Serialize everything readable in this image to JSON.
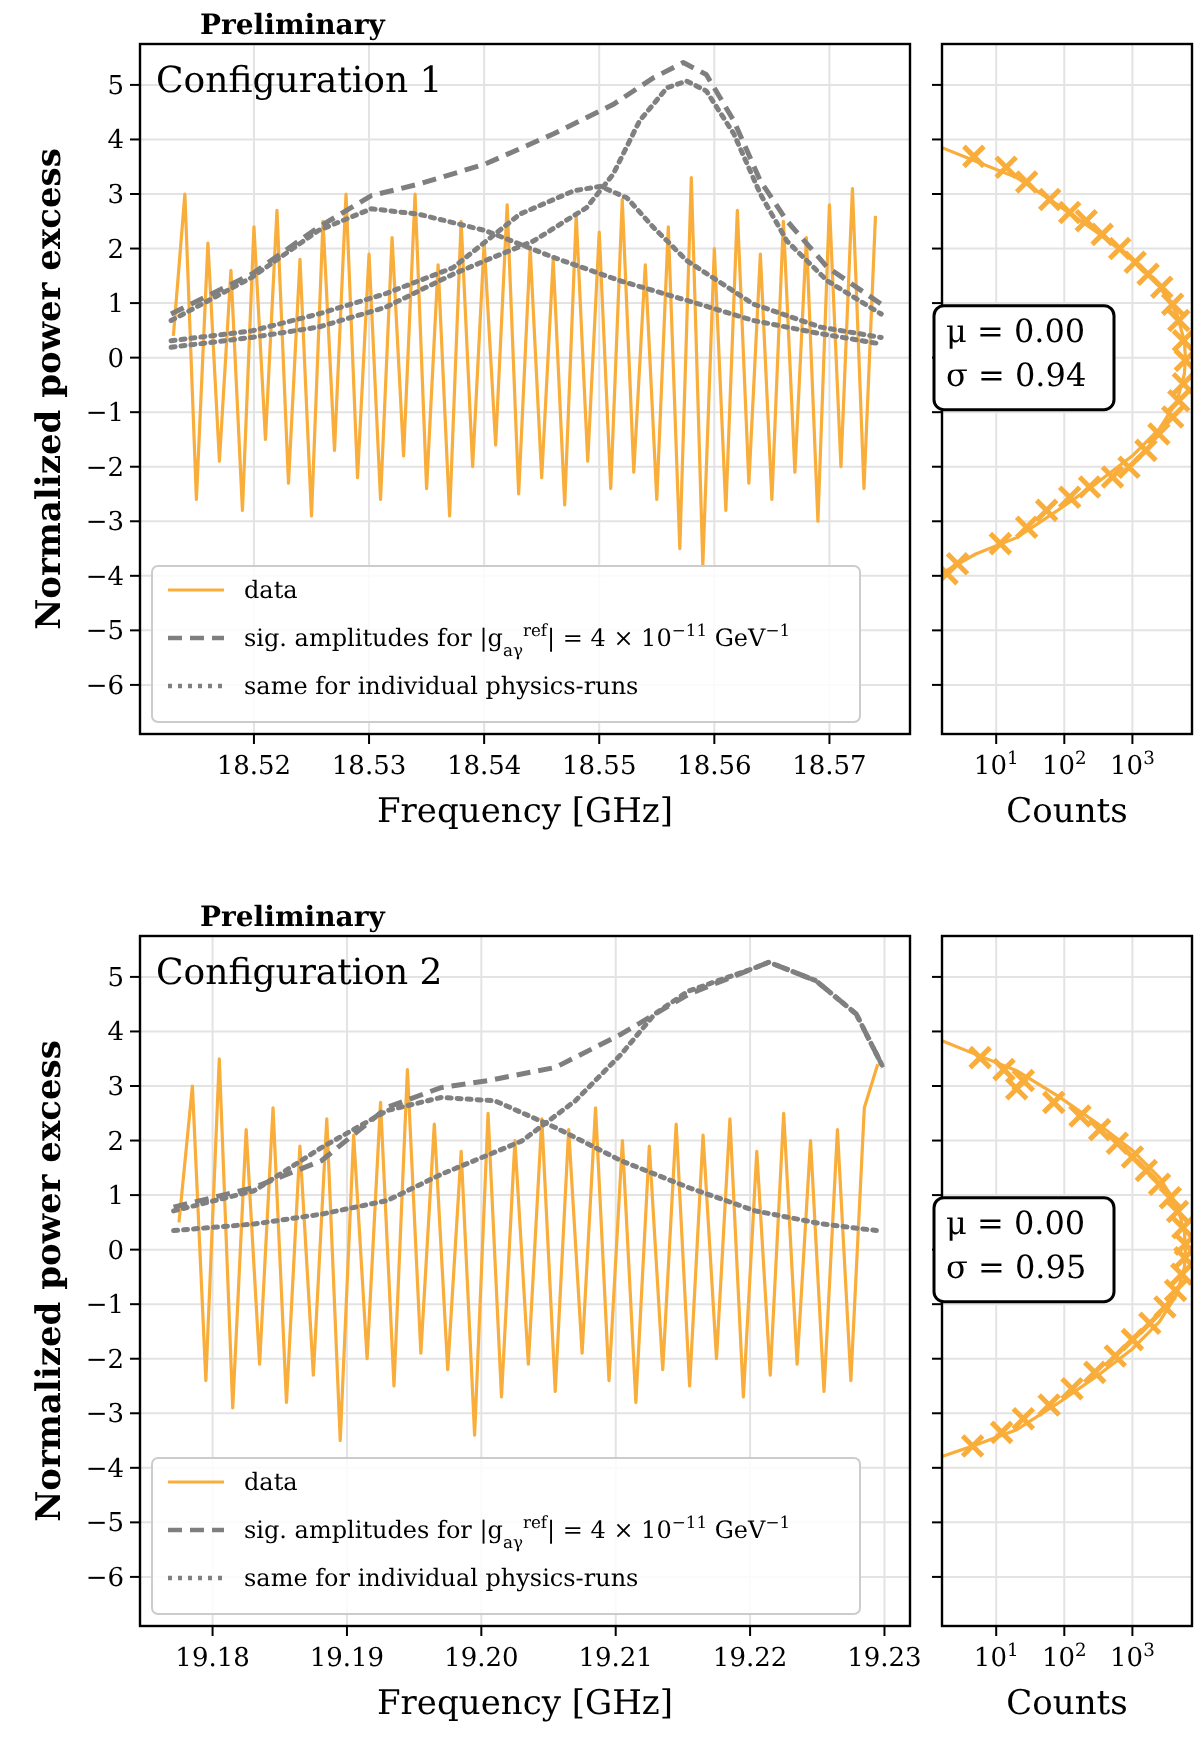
{
  "chart_data": [
    {
      "type": "line",
      "title": "Configuration 1",
      "xlabel": "Frequency [GHz]",
      "ylabel": "Normalized power excess",
      "annotations": [
        "Preliminary"
      ],
      "xlim": [
        18.5101,
        18.577
      ],
      "xticks": [
        18.52,
        18.53,
        18.54,
        18.55,
        18.56,
        18.57
      ],
      "ylim": [
        -6.9,
        5.75
      ],
      "yticks": [
        -6,
        -5,
        -4,
        -3,
        -2,
        -1,
        0,
        1,
        2,
        3,
        4,
        5
      ],
      "grid": true,
      "legend": "bottom left",
      "series": [
        {
          "name": "data",
          "color": "#f9ad3a",
          "line_style": "solid",
          "x": [
            18.513,
            18.514,
            18.515,
            18.516,
            18.517,
            18.518,
            18.519,
            18.52,
            18.521,
            18.522,
            18.523,
            18.524,
            18.525,
            18.526,
            18.527,
            18.528,
            18.529,
            18.53,
            18.531,
            18.532,
            18.533,
            18.534,
            18.535,
            18.536,
            18.537,
            18.538,
            18.539,
            18.54,
            18.541,
            18.542,
            18.543,
            18.544,
            18.545,
            18.546,
            18.547,
            18.548,
            18.549,
            18.55,
            18.551,
            18.552,
            18.553,
            18.554,
            18.555,
            18.556,
            18.557,
            18.558,
            18.559,
            18.56,
            18.561,
            18.562,
            18.563,
            18.564,
            18.565,
            18.566,
            18.567,
            18.568,
            18.569,
            18.57,
            18.571,
            18.572,
            18.573,
            18.574
          ],
          "values": [
            0.4,
            3.0,
            -2.6,
            2.1,
            -1.9,
            1.6,
            -2.8,
            2.4,
            -1.5,
            2.7,
            -2.3,
            1.8,
            -2.9,
            2.5,
            -1.7,
            3.0,
            -2.2,
            1.9,
            -2.6,
            2.2,
            -1.8,
            3.0,
            -2.4,
            1.7,
            -2.9,
            2.5,
            -2.0,
            2.1,
            -1.6,
            2.8,
            -2.5,
            2.0,
            -2.2,
            1.8,
            -2.7,
            2.6,
            -1.9,
            2.3,
            -2.4,
            2.9,
            -2.1,
            1.7,
            -2.6,
            2.4,
            -3.5,
            3.3,
            -3.8,
            2.0,
            -2.8,
            2.7,
            -2.3,
            1.9,
            -2.6,
            2.5,
            -2.1,
            2.2,
            -3.0,
            2.8,
            -2.0,
            3.1,
            -2.4,
            2.6
          ]
        },
        {
          "name": "sig. amplitudes for |g$_{aγ}$$^{ref}$| = 4 × 10$^{−11}$ GeV$^{−1}$",
          "color": "#7f7f7f",
          "line_style": "dashed",
          "x": [
            18.5128,
            18.5198,
            18.5256,
            18.5302,
            18.5343,
            18.5401,
            18.546,
            18.5512,
            18.5547,
            18.5573,
            18.5593,
            18.5617,
            18.564,
            18.5663,
            18.5698,
            18.5745
          ],
          "values": [
            0.8,
            1.53,
            2.39,
            2.97,
            3.18,
            3.55,
            4.1,
            4.64,
            5.13,
            5.41,
            5.19,
            4.34,
            3.24,
            2.51,
            1.66,
            0.98
          ]
        },
        {
          "name": "same for individual physics-runs",
          "color": "#808080",
          "line_style": "dotted",
          "x": [
            18.5128,
            18.5198,
            18.5256,
            18.5302,
            18.5343,
            18.5401,
            18.546,
            18.5518,
            18.5576,
            18.5634,
            18.5692,
            18.5745
          ],
          "values": [
            0.68,
            1.47,
            2.33,
            2.73,
            2.63,
            2.33,
            1.84,
            1.41,
            1.05,
            0.68,
            0.44,
            0.25
          ]
        },
        {
          "color": "#808080",
          "line_style": "dotted",
          "x": [
            18.5128,
            18.5198,
            18.5256,
            18.5314,
            18.5373,
            18.5431,
            18.5478,
            18.5501,
            18.5524,
            18.5547,
            18.5576,
            18.5634,
            18.5692,
            18.5745
          ],
          "values": [
            0.31,
            0.49,
            0.8,
            1.17,
            1.65,
            2.63,
            3.06,
            3.14,
            2.93,
            2.39,
            1.78,
            0.98,
            0.56,
            0.37
          ]
        },
        {
          "color": "#808080",
          "line_style": "dotted",
          "x": [
            18.5128,
            18.5198,
            18.5256,
            18.5314,
            18.5373,
            18.5408,
            18.5443,
            18.5489,
            18.5512,
            18.5535,
            18.5559,
            18.5576,
            18.5593,
            18.5617,
            18.564,
            18.5663,
            18.5698,
            18.5745
          ],
          "values": [
            0.19,
            0.37,
            0.56,
            0.92,
            1.53,
            1.84,
            2.14,
            2.75,
            3.36,
            4.34,
            4.95,
            5.07,
            4.89,
            4.1,
            3.0,
            2.14,
            1.41,
            0.8
          ]
        }
      ]
    },
    {
      "type": "scatter",
      "xlabel": "Counts",
      "annotations": [
        "μ = 0.00",
        "σ = 0.94"
      ],
      "log": "x",
      "xlim": [
        1.6,
        7500
      ],
      "xticks": [
        {
          "value": 10,
          "label": "10$^{1}$"
        },
        {
          "value": 100,
          "label": "10$^{2}$"
        },
        {
          "value": 1000,
          "label": "10$^{3}$"
        }
      ],
      "ylim": [
        -6.9,
        5.75
      ],
      "yticks": [
        -6,
        -5,
        -4,
        -3,
        -2,
        -1,
        0,
        1,
        2,
        3,
        4,
        5
      ],
      "tick_labels": "x",
      "grid": true,
      "series": [
        {
          "color": "#f9ad3a",
          "marker": "cross",
          "x": [
            4.7,
            14,
            28,
            61,
            120,
            210,
            360,
            650,
            1100,
            1700,
            2700,
            3900,
            4800,
            5600,
            6000,
            5600,
            4800,
            3900,
            2450,
            1580,
            890,
            510,
            235,
            120,
            55,
            28,
            11.5,
            2.7,
            1.9
          ],
          "values": [
            3.69,
            3.49,
            3.22,
            2.9,
            2.66,
            2.51,
            2.26,
            2.0,
            1.75,
            1.53,
            1.29,
            0.98,
            0.68,
            0.31,
            -0.05,
            -0.48,
            -0.79,
            -1.09,
            -1.4,
            -1.7,
            -2.01,
            -2.19,
            -2.37,
            -2.56,
            -2.8,
            -3.11,
            -3.41,
            -3.78,
            -3.96
          ]
        },
        {
          "type": "line",
          "color": "#f9ad3a",
          "line_style": "solid",
          "x": [
            1.6,
            5,
            20,
            80,
            300,
            1000,
            2500,
            4500,
            5800,
            6000,
            5800,
            4500,
            2500,
            1000,
            300,
            80,
            20,
            5,
            1.6
          ],
          "values": [
            3.85,
            3.6,
            3.3,
            2.8,
            2.3,
            1.8,
            1.3,
            0.8,
            0.3,
            0,
            -0.3,
            -0.8,
            -1.3,
            -1.8,
            -2.3,
            -2.8,
            -3.3,
            -3.6,
            -3.95
          ]
        }
      ]
    },
    {
      "type": "line",
      "title": "Configuration 2",
      "xlabel": "Frequency [GHz]",
      "ylabel": "Normalized power excess",
      "annotations": [
        "Preliminary"
      ],
      "xlim": [
        19.1746,
        19.2319
      ],
      "xticks": [
        19.18,
        19.19,
        {
          "value": 19.2,
          "label": "19.20"
        },
        19.21,
        19.22,
        19.23
      ],
      "ylim": [
        -6.9,
        5.75
      ],
      "yticks": [
        -6,
        -5,
        -4,
        -3,
        -2,
        -1,
        0,
        1,
        2,
        3,
        4,
        5
      ],
      "grid": true,
      "legend": "bottom left",
      "series": [
        {
          "name": "data",
          "color": "#f9ad3a",
          "line_style": "solid",
          "x": [
            19.1775,
            19.1785,
            19.1795,
            19.1805,
            19.1815,
            19.1825,
            19.1835,
            19.1845,
            19.1855,
            19.1865,
            19.1875,
            19.1885,
            19.1895,
            19.1905,
            19.1915,
            19.1925,
            19.1935,
            19.1945,
            19.1955,
            19.1965,
            19.1975,
            19.1985,
            19.1995,
            19.2005,
            19.2015,
            19.2025,
            19.2035,
            19.2045,
            19.2055,
            19.2065,
            19.2075,
            19.2085,
            19.2095,
            19.2105,
            19.2115,
            19.2125,
            19.2135,
            19.2145,
            19.2155,
            19.2165,
            19.2175,
            19.2185,
            19.2195,
            19.2205,
            19.2215,
            19.2225,
            19.2235,
            19.2245,
            19.2255,
            19.2265,
            19.2275,
            19.2285,
            19.2295
          ],
          "values": [
            0.5,
            3.0,
            -2.4,
            3.5,
            -2.9,
            2.2,
            -2.1,
            2.6,
            -2.8,
            1.9,
            -2.3,
            2.4,
            -3.5,
            2.1,
            -2.0,
            2.7,
            -2.5,
            3.3,
            -1.9,
            2.3,
            -2.2,
            1.8,
            -3.4,
            2.5,
            -2.7,
            2.0,
            -2.1,
            2.4,
            -2.6,
            2.2,
            -1.9,
            2.6,
            -2.4,
            2.0,
            -2.8,
            1.9,
            -2.2,
            2.3,
            -2.5,
            2.1,
            -2.0,
            2.4,
            -2.7,
            1.8,
            -2.3,
            2.5,
            -2.1,
            2.0,
            -2.6,
            2.2,
            -2.4,
            2.6,
            3.4
          ]
        },
        {
          "name": "sig. amplitudes for |g$_{aγ}$$^{ref}$| = 4 × 10$^{−11}$ GeV$^{−1}$",
          "color": "#7f7f7f",
          "line_style": "dashed",
          "x": [
            19.1771,
            19.1831,
            19.1881,
            19.193,
            19.197,
            19.2005,
            19.2055,
            19.2104,
            19.2154,
            19.2204,
            19.2214,
            19.2249,
            19.2279,
            19.2299
          ],
          "values": [
            0.78,
            1.14,
            1.63,
            2.61,
            2.97,
            3.1,
            3.34,
            3.95,
            4.68,
            5.17,
            5.27,
            4.93,
            4.32,
            3.34
          ]
        },
        {
          "name": "same for individual physics-runs",
          "color": "#808080",
          "line_style": "dotted",
          "x": [
            19.1771,
            19.1831,
            19.1881,
            19.193,
            19.197,
            19.201,
            19.2055,
            19.2104,
            19.2154,
            19.2204,
            19.2254,
            19.2294
          ],
          "values": [
            0.71,
            1.08,
            1.87,
            2.55,
            2.79,
            2.73,
            2.24,
            1.63,
            1.14,
            0.71,
            0.47,
            0.35
          ]
        },
        {
          "color": "#808080",
          "line_style": "dotted",
          "x": [
            19.1771,
            19.1831,
            19.1881,
            19.193,
            19.197,
            19.203,
            19.207,
            19.2104,
            19.2129,
            19.2154,
            19.2204,
            19.2214,
            19.2249,
            19.2279,
            19.2299
          ],
          "values": [
            0.35,
            0.47,
            0.65,
            0.9,
            1.38,
            1.99,
            2.73,
            3.58,
            4.32,
            4.74,
            5.17,
            5.27,
            4.93,
            4.32,
            3.34
          ]
        }
      ]
    },
    {
      "type": "scatter",
      "xlabel": "Counts",
      "annotations": [
        "μ = 0.00",
        "σ = 0.95"
      ],
      "log": "x",
      "xlim": [
        1.6,
        7500
      ],
      "xticks": [
        {
          "value": 10,
          "label": "10$^{1}$"
        },
        {
          "value": 100,
          "label": "10$^{2}$"
        },
        {
          "value": 1000,
          "label": "10$^{3}$"
        }
      ],
      "ylim": [
        -6.9,
        5.75
      ],
      "yticks": [
        -6,
        -5,
        -4,
        -3,
        -2,
        -1,
        0,
        1,
        2,
        3,
        4,
        5
      ],
      "tick_labels": "x",
      "grid": true,
      "series": [
        {
          "color": "#f9ad3a",
          "marker": "cross",
          "x": [
            5.8,
            13,
            25,
            20,
            70,
            170,
            330,
            600,
            1000,
            1600,
            2500,
            3600,
            4600,
            5500,
            6000,
            5900,
            5300,
            4300,
            3000,
            1800,
            1000,
            560,
            280,
            130,
            60,
            25,
            12,
            4.5
          ],
          "values": [
            3.52,
            3.3,
            3.1,
            2.95,
            2.7,
            2.45,
            2.2,
            1.95,
            1.7,
            1.45,
            1.2,
            0.95,
            0.7,
            0.4,
            0.1,
            -0.15,
            -0.45,
            -0.75,
            -1.05,
            -1.35,
            -1.65,
            -1.95,
            -2.25,
            -2.55,
            -2.85,
            -3.1,
            -3.35,
            -3.6
          ]
        },
        {
          "type": "line",
          "color": "#f9ad3a",
          "line_style": "solid",
          "x": [
            1.6,
            5,
            20,
            80,
            300,
            1000,
            2500,
            4500,
            5800,
            6000,
            5800,
            4500,
            2500,
            1000,
            300,
            80,
            20,
            5,
            1.6
          ],
          "values": [
            3.83,
            3.58,
            3.28,
            2.82,
            2.32,
            1.82,
            1.32,
            0.82,
            0.32,
            0,
            -0.32,
            -0.82,
            -1.32,
            -1.82,
            -2.32,
            -2.82,
            -3.3,
            -3.58,
            -3.79
          ]
        }
      ]
    }
  ]
}
